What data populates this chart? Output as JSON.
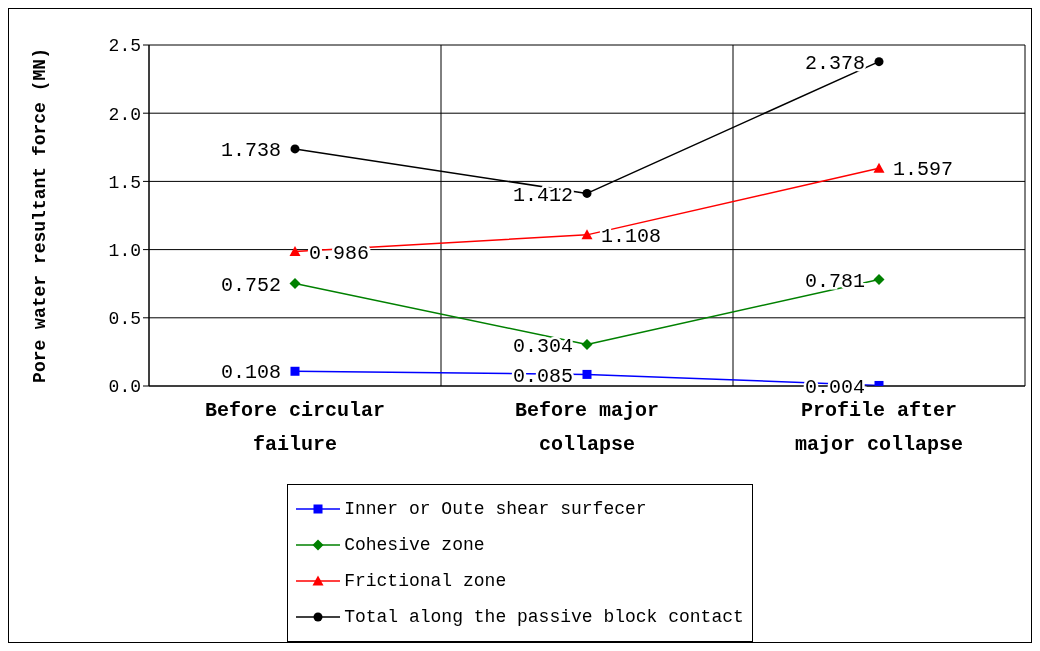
{
  "chart_data": {
    "type": "line",
    "ylabel": "Pore water resultant force (MN)",
    "categories": [
      "Before circular failure",
      "Before major collapse",
      "Profile after major collapse"
    ],
    "series": [
      {
        "name": "Inner or Oute shear surfecer",
        "color": "#0000ff",
        "marker": "square",
        "values": [
          0.108,
          0.085,
          0.004
        ]
      },
      {
        "name": "Cohesive zone",
        "color": "#008000",
        "marker": "diamond",
        "values": [
          0.752,
          0.304,
          0.781
        ]
      },
      {
        "name": "Frictional zone",
        "color": "#ff0000",
        "marker": "triangle",
        "values": [
          0.986,
          1.108,
          1.597
        ]
      },
      {
        "name": "Total along the passive block contact",
        "color": "#000000",
        "marker": "circle",
        "values": [
          1.738,
          1.412,
          2.378
        ]
      }
    ],
    "ylim": [
      0,
      2.5
    ],
    "yticks": [
      {
        "value": 0,
        "label": "0.0"
      },
      {
        "value": 0.5,
        "label": "0.5"
      },
      {
        "value": 1,
        "label": "1.0"
      },
      {
        "value": 1.5,
        "label": "1.5"
      },
      {
        "value": 2,
        "label": "2.0"
      },
      {
        "value": 2.5,
        "label": "2.5"
      }
    ],
    "grid": true,
    "legend": "bottom",
    "data_labels": true
  }
}
